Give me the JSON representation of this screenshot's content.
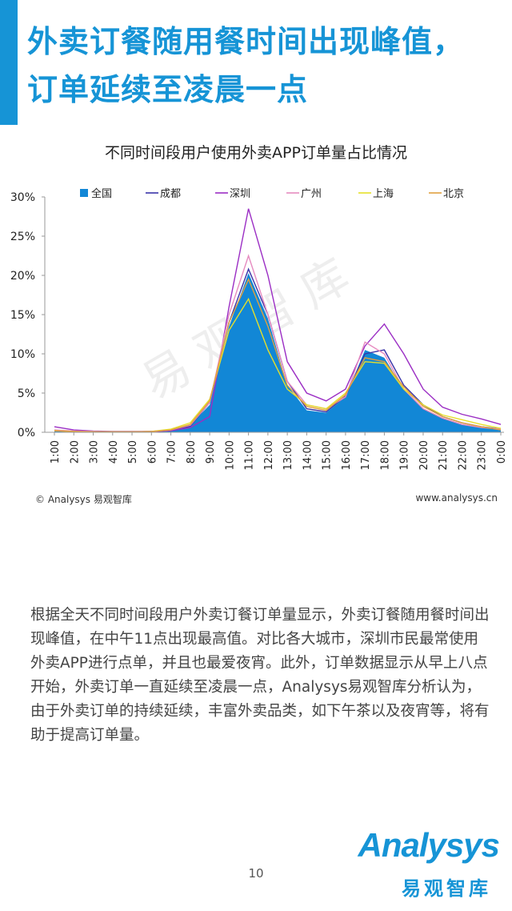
{
  "headline": {
    "line1": "外卖订餐随用餐时间出现峰值，",
    "line2": "订单延续至凌晨一点"
  },
  "chart_data": {
    "type": "area",
    "title": "不同时间段用户使用外卖APP订单量占比情况",
    "categories": [
      "1:00",
      "2:00",
      "3:00",
      "4:00",
      "5:00",
      "6:00",
      "7:00",
      "8:00",
      "9:00",
      "10:00",
      "11:00",
      "12:00",
      "13:00",
      "14:00",
      "15:00",
      "16:00",
      "17:00",
      "18:00",
      "19:00",
      "20:00",
      "21:00",
      "22:00",
      "23:00",
      "0:00"
    ],
    "ylim": [
      0,
      30
    ],
    "y_ticks": [
      "0%",
      "5%",
      "10%",
      "15%",
      "20%",
      "25%",
      "30%"
    ],
    "legend_position": "top",
    "series": [
      {
        "name": "全国",
        "kind": "area",
        "color": "#1287d6",
        "values": [
          0.2,
          0.1,
          0.05,
          0.05,
          0.05,
          0.1,
          0.3,
          0.9,
          3.5,
          13.5,
          20.3,
          14.5,
          6.0,
          2.8,
          2.5,
          4.5,
          10.5,
          9.5,
          5.5,
          3.0,
          1.8,
          1.0,
          0.6,
          0.3
        ]
      },
      {
        "name": "成都",
        "kind": "line",
        "color": "#3a34a8",
        "values": [
          0.2,
          0.1,
          0.05,
          0.05,
          0.05,
          0.1,
          0.2,
          0.8,
          3.8,
          14.0,
          20.8,
          15.0,
          6.5,
          3.0,
          2.6,
          4.6,
          10.0,
          10.5,
          6.0,
          3.5,
          2.0,
          1.2,
          0.7,
          0.4
        ]
      },
      {
        "name": "深圳",
        "kind": "line",
        "color": "#9b2ec4",
        "values": [
          0.7,
          0.3,
          0.15,
          0.1,
          0.1,
          0.1,
          0.2,
          0.6,
          2.0,
          16.0,
          28.5,
          20.0,
          9.0,
          5.0,
          4.0,
          5.5,
          11.0,
          13.8,
          10.0,
          5.5,
          3.2,
          2.3,
          1.7,
          1.0
        ]
      },
      {
        "name": "广州",
        "kind": "line",
        "color": "#e68bc0",
        "values": [
          0.3,
          0.15,
          0.1,
          0.05,
          0.05,
          0.1,
          0.3,
          0.9,
          3.8,
          15.0,
          22.5,
          15.0,
          6.5,
          3.5,
          3.0,
          4.5,
          11.5,
          10.0,
          5.5,
          3.0,
          1.8,
          1.0,
          0.6,
          0.4
        ]
      },
      {
        "name": "上海",
        "kind": "line",
        "color": "#e6df2a",
        "values": [
          0.2,
          0.1,
          0.05,
          0.05,
          0.05,
          0.1,
          0.4,
          1.2,
          4.2,
          13.0,
          17.0,
          10.5,
          5.5,
          3.5,
          3.0,
          5.0,
          9.0,
          8.8,
          5.5,
          3.5,
          2.2,
          1.6,
          1.0,
          0.5
        ]
      },
      {
        "name": "北京",
        "kind": "line",
        "color": "#e0a040",
        "values": [
          0.2,
          0.1,
          0.05,
          0.05,
          0.05,
          0.1,
          0.3,
          1.0,
          4.0,
          14.0,
          19.5,
          13.5,
          6.0,
          3.3,
          2.8,
          4.8,
          9.5,
          9.0,
          5.8,
          3.3,
          2.0,
          1.2,
          0.7,
          0.3
        ]
      }
    ]
  },
  "source_left": "© Analysys 易观智库",
  "source_right": "www.analysys.cn",
  "watermark": "易观智库",
  "body_text": "根据全天不同时间段用户外卖订餐订单量显示，外卖订餐随用餐时间出现峰值，在中午11点出现最高值。对比各大城市，深圳市民最常使用外卖APP进行点单，并且也最爱夜宵。此外，订单数据显示从早上八点开始，外卖订单一直延续至凌晨一点，Analysys易观智库分析认为，由于外卖订单的持续延续，丰富外卖品类，如下午茶以及夜宵等，将有助于提高订单量。",
  "page_number": "10",
  "logo": {
    "en": "Analysys",
    "cn": "易观智库"
  }
}
